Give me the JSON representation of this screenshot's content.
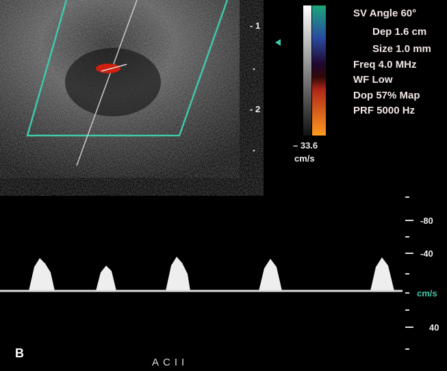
{
  "depth_markers": [
    "- 1",
    "- 2"
  ],
  "settings": [
    "SV Angle 60°",
    "Dep 1.6  cm",
    "Size 1.0  mm",
    "Freq 4.0  MHz",
    "WF Low",
    "Dop 57%  Map",
    "PRF 5000  Hz"
  ],
  "color_scale": {
    "limit": "– 33.6",
    "unit": "cm/s"
  },
  "velocity_scale": {
    "labels": [
      "-80",
      "-40",
      "40"
    ],
    "unit": "cm/s"
  },
  "panel_label": "B",
  "caption": "ACII"
}
